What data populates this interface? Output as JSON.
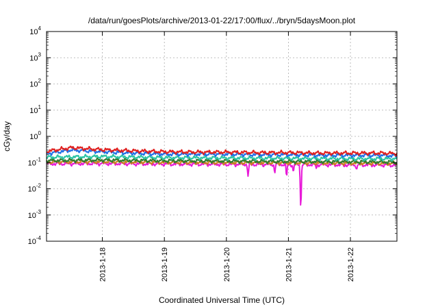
{
  "chart_data": {
    "type": "line",
    "title": "/data/run/goesPlots/archive/2013-01-22/17:00/flux/../bryn/5daysMoon.plot",
    "xlabel": "Coordinated Universal Time (UTC)",
    "ylabel": "cGy/day",
    "yscale": "log",
    "grid": true,
    "ylim_exponent": [
      -4,
      4
    ],
    "y_tick_labels": [
      {
        "base": "10",
        "exp": "4"
      },
      {
        "base": "10",
        "exp": "3"
      },
      {
        "base": "10",
        "exp": "2"
      },
      {
        "base": "10",
        "exp": "1"
      },
      {
        "base": "10",
        "exp": "0"
      },
      {
        "base": "10",
        "exp": "-1"
      },
      {
        "base": "10",
        "exp": "-2"
      },
      {
        "base": "10",
        "exp": "-3"
      },
      {
        "base": "10",
        "exp": "-4"
      }
    ],
    "xlim_days": [
      17.1,
      22.75
    ],
    "x_ticks": [
      {
        "day": 18,
        "label": "2013-1-18"
      },
      {
        "day": 19,
        "label": "2013-1-19"
      },
      {
        "day": 20,
        "label": "2013-1-20"
      },
      {
        "day": 21,
        "label": "2013-1-21"
      },
      {
        "day": 22,
        "label": "2013-1-22"
      }
    ],
    "series": [
      {
        "color": "#e0201f",
        "base": [
          [
            17.1,
            0.27
          ],
          [
            17.5,
            0.37
          ],
          [
            18.0,
            0.31
          ],
          [
            18.5,
            0.28
          ],
          [
            19.0,
            0.26
          ],
          [
            19.5,
            0.25
          ],
          [
            20.0,
            0.25
          ],
          [
            20.5,
            0.24
          ],
          [
            21.0,
            0.24
          ],
          [
            21.5,
            0.23
          ],
          [
            22.0,
            0.23
          ],
          [
            22.5,
            0.23
          ],
          [
            22.75,
            0.22
          ]
        ],
        "dips": []
      },
      {
        "color": "#1f6fe6",
        "base": [
          [
            17.1,
            0.22
          ],
          [
            17.5,
            0.3
          ],
          [
            18.0,
            0.26
          ],
          [
            18.5,
            0.23
          ],
          [
            19.0,
            0.21
          ],
          [
            19.5,
            0.21
          ],
          [
            20.0,
            0.21
          ],
          [
            20.5,
            0.2
          ],
          [
            21.0,
            0.2
          ],
          [
            21.5,
            0.19
          ],
          [
            22.0,
            0.19
          ],
          [
            22.5,
            0.19
          ],
          [
            22.75,
            0.18
          ]
        ],
        "dips": []
      },
      {
        "color": "#2bc4a4",
        "base": [
          [
            17.1,
            0.16
          ],
          [
            18.0,
            0.17
          ],
          [
            19.0,
            0.155
          ],
          [
            20.0,
            0.15
          ],
          [
            21.0,
            0.145
          ],
          [
            22.0,
            0.14
          ],
          [
            22.75,
            0.14
          ]
        ],
        "dips": []
      },
      {
        "color": "#2f7a2f",
        "base": [
          [
            17.1,
            0.12
          ],
          [
            18.0,
            0.125
          ],
          [
            19.0,
            0.118
          ],
          [
            20.0,
            0.115
          ],
          [
            21.0,
            0.11
          ],
          [
            22.0,
            0.108
          ],
          [
            22.75,
            0.105
          ]
        ],
        "dips": []
      },
      {
        "color": "#c8801e",
        "base": [
          [
            17.1,
            0.105
          ],
          [
            18.0,
            0.108
          ],
          [
            19.0,
            0.102
          ],
          [
            20.0,
            0.1
          ],
          [
            21.0,
            0.098
          ],
          [
            22.0,
            0.095
          ],
          [
            22.75,
            0.093
          ]
        ],
        "dips": []
      },
      {
        "color": "#e81ad8",
        "base": [
          [
            17.1,
            0.09
          ],
          [
            18.0,
            0.092
          ],
          [
            19.0,
            0.088
          ],
          [
            20.0,
            0.086
          ],
          [
            21.0,
            0.084
          ],
          [
            22.0,
            0.082
          ],
          [
            22.75,
            0.08
          ]
        ],
        "dips": [
          [
            20.35,
            0.03
          ],
          [
            20.78,
            0.04
          ],
          [
            20.97,
            0.03
          ],
          [
            21.08,
            0.045
          ],
          [
            21.2,
            0.0017
          ],
          [
            21.45,
            0.06
          ],
          [
            21.9,
            0.07
          ],
          [
            22.1,
            0.055
          ]
        ]
      }
    ]
  }
}
